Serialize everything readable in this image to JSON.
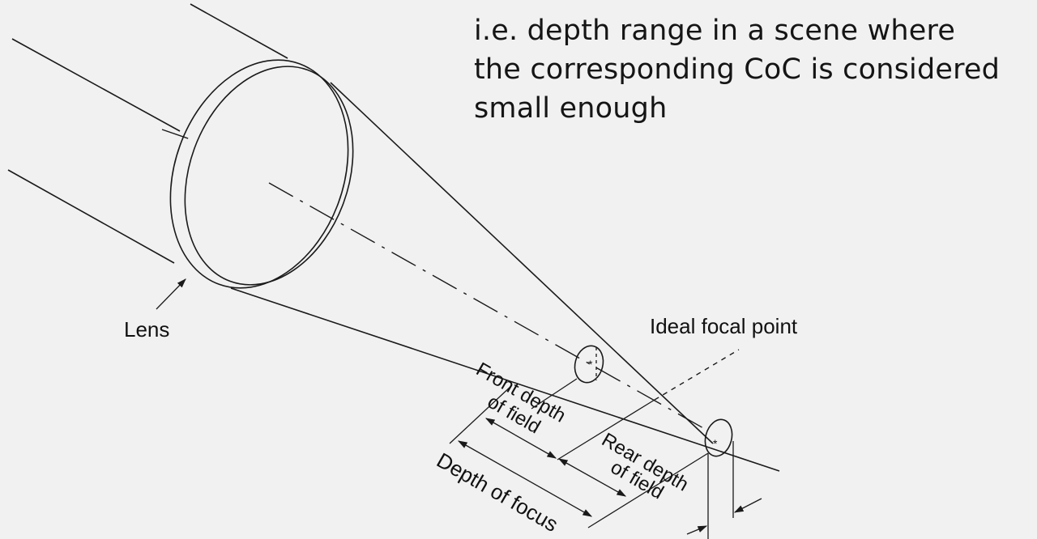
{
  "caption": {
    "line1": "i.e. depth range in a scene where",
    "line2": "the corresponding CoC is considered",
    "line3": "small enough"
  },
  "labels": {
    "lens": "Lens",
    "ideal_focal_point": "Ideal focal point",
    "front_depth_line1": "Front depth",
    "front_depth_line2": "of field",
    "rear_depth_line1": "Rear depth",
    "rear_depth_line2": "of field",
    "depth_of_focus": "Depth of focus"
  },
  "colors": {
    "background": "#f1f1f1",
    "ink": "#1a1a1a"
  }
}
